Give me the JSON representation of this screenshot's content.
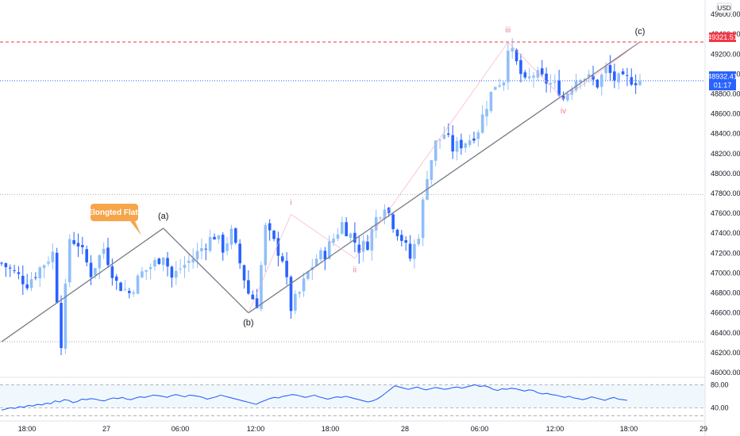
{
  "currency": "USD",
  "annotation_label": "Elongted Flat",
  "colors": {
    "up": "#90bff9",
    "down": "#2962ff",
    "trendline": "#787b86",
    "subwave": "#f7a8b8",
    "subwave_label": "#e8808c",
    "resistance": "#f23645",
    "current": "#2962ff",
    "label_box": "#f7a54a",
    "rsi": "#2962ff"
  },
  "price_tags": {
    "resistance": "49321.51",
    "current": "48932.41",
    "countdown": "01:17"
  },
  "chart_data": {
    "type": "candlestick",
    "y_ticks": [
      "49600.00",
      "49400.00",
      "49200.00",
      "49000.00",
      "48800.00",
      "48600.00",
      "48400.00",
      "48200.00",
      "48000.00",
      "47800.00",
      "47600.00",
      "47400.00",
      "47200.00",
      "47000.00",
      "46800.00",
      "46600.00",
      "46400.00",
      "46200.00",
      "46000.00"
    ],
    "ylim": [
      46000,
      49680
    ],
    "x_ticks": [
      "18:00",
      "27",
      "06:00",
      "12:00",
      "18:00",
      "28",
      "06:00",
      "12:00",
      "18:00",
      "29"
    ],
    "horizontal_levels": {
      "resistance": 49321.51,
      "current": 48932.41,
      "upper_gray": 47790,
      "lower_gray": 46310
    },
    "main_waves": [
      {
        "label": "",
        "t": 0,
        "price": 46310
      },
      {
        "label": "(a)",
        "t": 38,
        "price": 47450
      },
      {
        "label": "(b)",
        "t": 58,
        "price": 46600
      },
      {
        "label": "(c)",
        "t": 150,
        "price": 49321
      }
    ],
    "sub_waves": [
      {
        "label": "i",
        "t": 68,
        "price": 47590
      },
      {
        "label": "ii",
        "t": 83,
        "price": 47150
      },
      {
        "label": "iii",
        "t": 119,
        "price": 49321
      },
      {
        "label": "iv",
        "t": 132,
        "price": 48750
      }
    ],
    "rsi": {
      "levels": [
        80,
        40
      ],
      "values": [
        36,
        38,
        40,
        39,
        42,
        41,
        44,
        43,
        46,
        45,
        48,
        47,
        52,
        50,
        54,
        53,
        49,
        51,
        55,
        54,
        56,
        55,
        53,
        52,
        55,
        57,
        56,
        58,
        55,
        54,
        57,
        59,
        58,
        60,
        62,
        61,
        60,
        58,
        61,
        63,
        61,
        59,
        62,
        61,
        60,
        58,
        55,
        57,
        59,
        62,
        60,
        58,
        56,
        54,
        52,
        50,
        48,
        46,
        50,
        53,
        56,
        58,
        57,
        60,
        61,
        63,
        62,
        60,
        58,
        60,
        62,
        59,
        57,
        55,
        57,
        59,
        58,
        60,
        58,
        56,
        54,
        52,
        50,
        52,
        55,
        60,
        66,
        72,
        78,
        76,
        74,
        72,
        74,
        76,
        73,
        71,
        73,
        75,
        74,
        72,
        73,
        75,
        76,
        74,
        76,
        78,
        80,
        77,
        78,
        76,
        72,
        70,
        73,
        72,
        74,
        73,
        71,
        69,
        71,
        70,
        66,
        64,
        65,
        63,
        62,
        60,
        58,
        60,
        57,
        56,
        54,
        56,
        59,
        57,
        55,
        53,
        56,
        58,
        55,
        54,
        53
      ]
    }
  }
}
